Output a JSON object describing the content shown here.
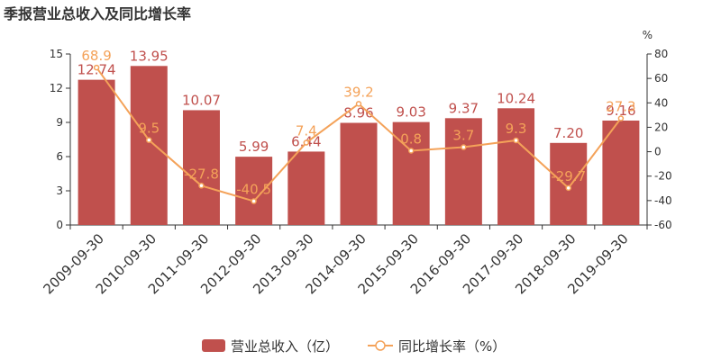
{
  "chart_data": {
    "type": "bar",
    "title": "季报营业总收入及同比增长率",
    "categories": [
      "2009-09-30",
      "2010-09-30",
      "2011-09-30",
      "2012-09-30",
      "2013-09-30",
      "2014-09-30",
      "2015-09-30",
      "2016-09-30",
      "2017-09-30",
      "2018-09-30",
      "2019-09-30"
    ],
    "series": [
      {
        "name": "营业总收入（亿）",
        "type": "bar",
        "axis": "left",
        "values": [
          12.74,
          13.95,
          10.07,
          5.99,
          6.44,
          8.96,
          9.03,
          9.37,
          10.24,
          7.2,
          9.16
        ],
        "labels": [
          "12.74",
          "13.95",
          "10.07",
          "5.99",
          "6.44",
          "8.96",
          "9.03",
          "9.37",
          "10.24",
          "7.20",
          "9.16"
        ],
        "color": "#c0504d"
      },
      {
        "name": "同比增长率（%）",
        "type": "line",
        "axis": "right",
        "values": [
          68.9,
          9.5,
          -27.8,
          -40.5,
          7.4,
          39.2,
          0.8,
          3.7,
          9.3,
          -29.7,
          27.3
        ],
        "labels": [
          "68.9",
          "9.5",
          "-27.8",
          "-40.5",
          "7.4",
          "39.2",
          "0.8",
          "3.7",
          "9.3",
          "-29.7",
          "27.3"
        ],
        "color": "#f4a259"
      }
    ],
    "y_left": {
      "min": 0,
      "max": 15,
      "ticks": [
        0,
        3,
        6,
        9,
        12,
        15
      ]
    },
    "y_right": {
      "min": -60,
      "max": 80,
      "ticks": [
        -60,
        -40,
        -20,
        0,
        20,
        40,
        60,
        80
      ],
      "unit": "%"
    },
    "grid": false,
    "legend": "bottom-center"
  }
}
